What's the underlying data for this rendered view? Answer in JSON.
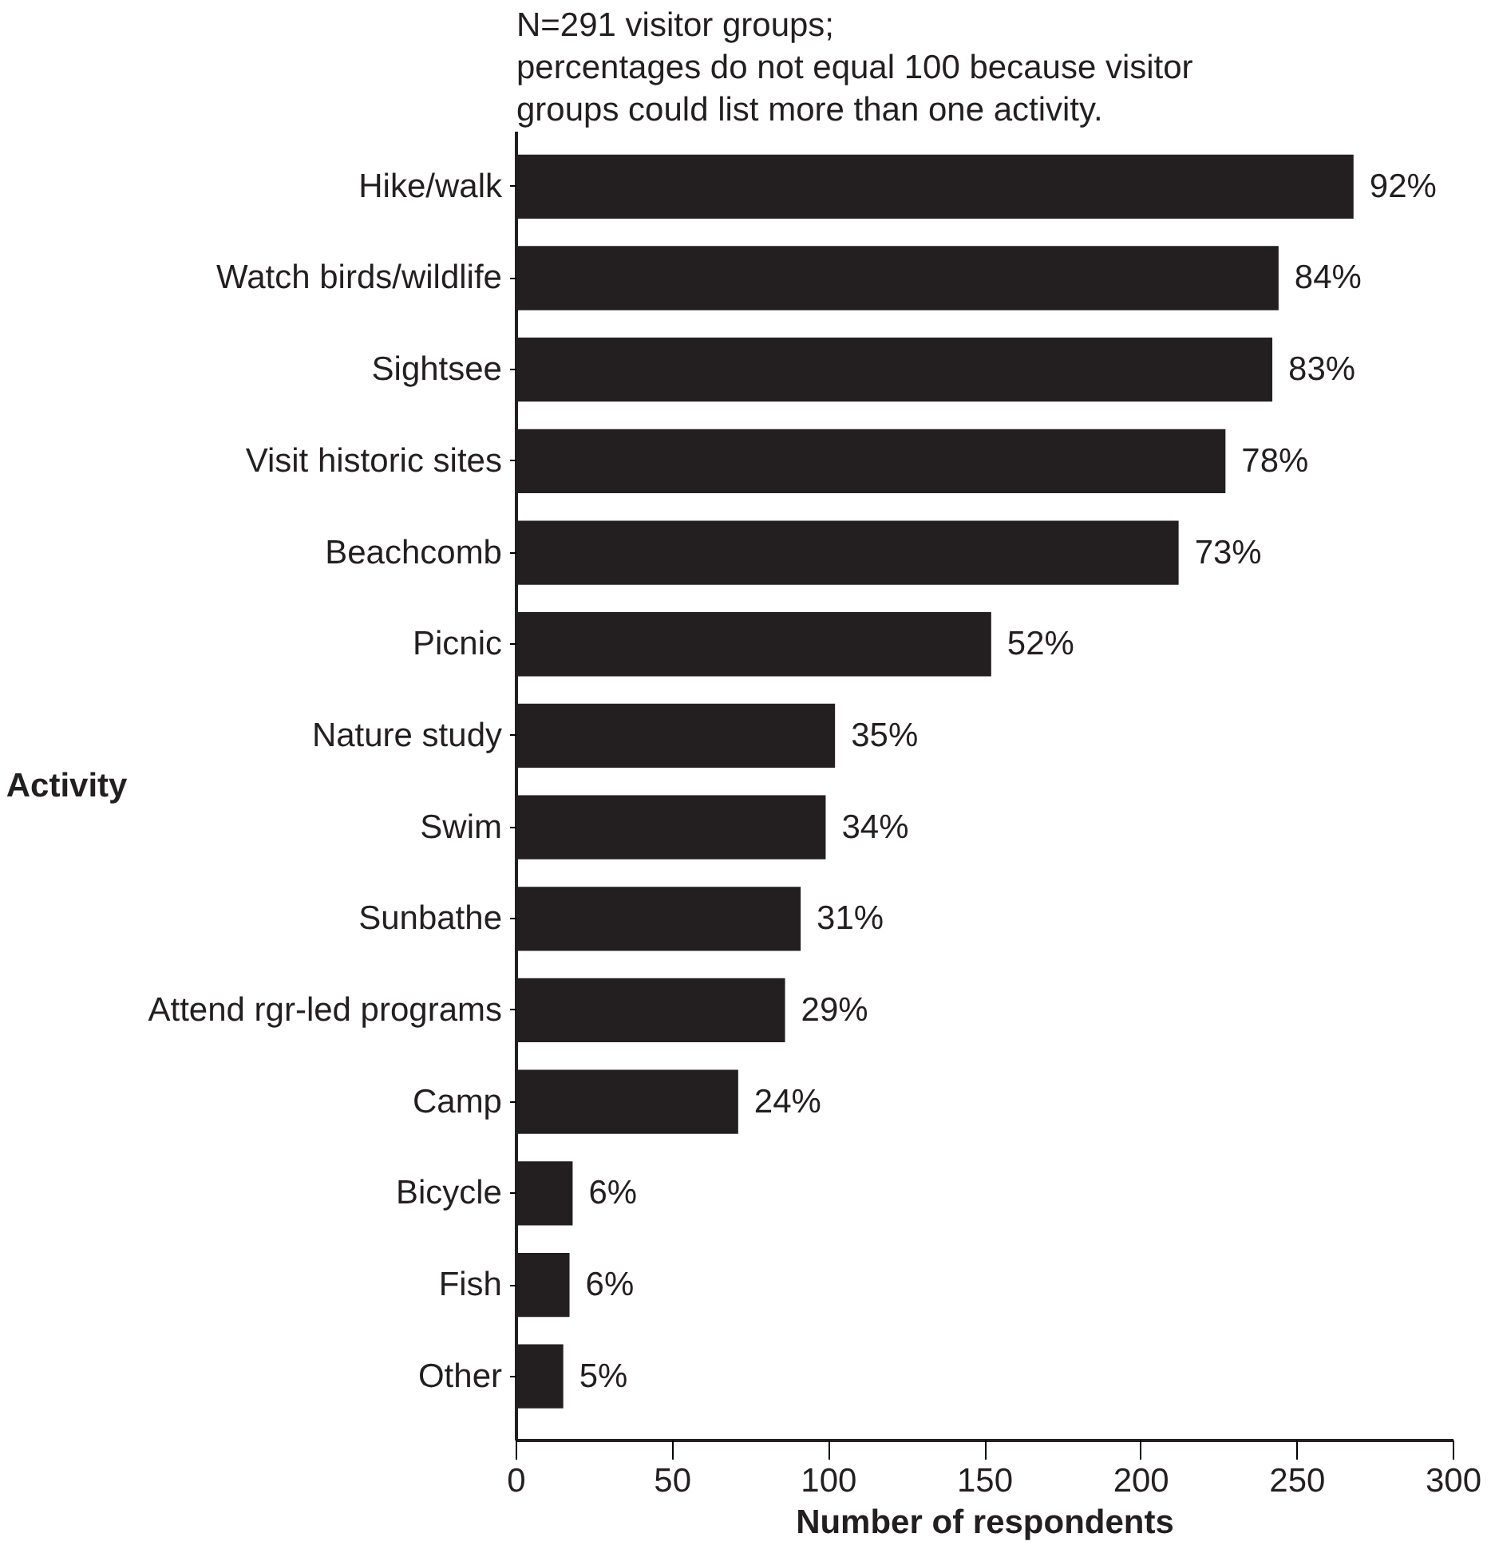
{
  "chart_data": {
    "type": "bar",
    "orientation": "horizontal",
    "title": "N=291 visitor groups;\npercentages do not equal 100 because visitor\ngroups could list more than one activity.",
    "ylabel": "Activity",
    "xlabel": "Number of respondents",
    "categories": [
      "Hike/walk",
      "Watch birds/wildlife",
      "Sightsee",
      "Visit historic sites",
      "Beachcomb",
      "Picnic",
      "Nature study",
      "Swim",
      "Sunbathe",
      "Attend rgr-led programs",
      "Camp",
      "Bicycle",
      "Fish",
      "Other"
    ],
    "values": [
      268,
      244,
      242,
      227,
      212,
      152,
      102,
      99,
      91,
      86,
      71,
      18,
      17,
      15
    ],
    "annotations": [
      {
        "text": "92%",
        "x": 268,
        "y": "Hike/walk"
      },
      {
        "text": "84%",
        "x": 244,
        "y": "Watch birds/wildlife"
      },
      {
        "text": "83%",
        "x": 242,
        "y": "Sightsee"
      },
      {
        "text": "78%",
        "x": 227,
        "y": "Visit historic sites"
      },
      {
        "text": "73%",
        "x": 212,
        "y": "Beachcomb"
      },
      {
        "text": "52%",
        "x": 152,
        "y": "Picnic"
      },
      {
        "text": "35%",
        "x": 102,
        "y": "Nature study"
      },
      {
        "text": "34%",
        "x": 99,
        "y": "Swim"
      },
      {
        "text": "31%",
        "x": 91,
        "y": "Sunbathe"
      },
      {
        "text": "29%",
        "x": 86,
        "y": "Attend rgr-led programs"
      },
      {
        "text": "24%",
        "x": 71,
        "y": "Camp"
      },
      {
        "text": "6%",
        "x": 18,
        "y": "Bicycle"
      },
      {
        "text": "6%",
        "x": 17,
        "y": "Fish"
      },
      {
        "text": "5%",
        "x": 15,
        "y": "Other"
      }
    ],
    "color": "#231f20",
    "xlim": [
      0,
      300
    ],
    "xticks": [
      0,
      50,
      100,
      150,
      200,
      250,
      300
    ],
    "grid": false
  }
}
